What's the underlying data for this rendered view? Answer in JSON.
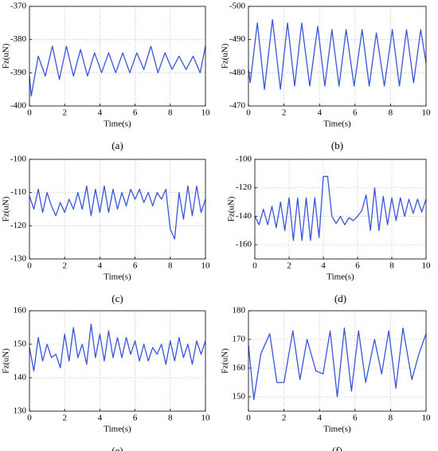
{
  "chart_data": [
    {
      "type": "line",
      "caption": "(a)",
      "xlabel": "Time(s)",
      "ylabel": "Fz(uN)",
      "x": [
        0,
        0.1,
        0.5,
        0.9,
        1.3,
        1.7,
        2.1,
        2.5,
        2.9,
        3.3,
        3.7,
        4.1,
        4.5,
        4.9,
        5.3,
        5.7,
        6.1,
        6.5,
        6.9,
        7.3,
        7.7,
        8.1,
        8.5,
        8.9,
        9.3,
        9.7,
        10
      ],
      "values": [
        -391,
        -397,
        -385,
        -391,
        -382,
        -392,
        -382,
        -391,
        -383,
        -391,
        -384,
        -390,
        -384,
        -390,
        -384,
        -390,
        -384,
        -389,
        -382,
        -390,
        -384,
        -389,
        -385,
        -389,
        -385,
        -390,
        -382
      ],
      "color": "#3a54d8",
      "xlim": [
        0,
        10
      ],
      "xticks": [
        0,
        2,
        4,
        6,
        8,
        10
      ],
      "ylim": [
        -400,
        -370
      ],
      "yticks": [
        -400,
        -390,
        -380,
        -370
      ],
      "grid": true
    },
    {
      "type": "line",
      "caption": "(b)",
      "xlabel": "Time(s)",
      "ylabel": "Fz(uN)",
      "x": [
        0,
        0.1,
        0.5,
        0.9,
        1.35,
        1.8,
        2.2,
        2.6,
        3.0,
        3.45,
        3.9,
        4.3,
        4.7,
        5.1,
        5.5,
        5.95,
        6.4,
        6.8,
        7.2,
        7.65,
        8.1,
        8.5,
        8.9,
        9.3,
        9.7,
        10
      ],
      "values": [
        -481,
        -477,
        -495,
        -475,
        -496,
        -475,
        -495,
        -476,
        -495,
        -476,
        -494,
        -476,
        -493,
        -476,
        -493,
        -476,
        -493,
        -476,
        -492,
        -476,
        -493,
        -476,
        -493,
        -477,
        -493,
        -483
      ],
      "color": "#3a54d8",
      "xlim": [
        0,
        10
      ],
      "xticks": [
        0,
        2,
        4,
        6,
        8,
        10
      ],
      "ylim": [
        -470,
        -500
      ],
      "yticks": [
        -470,
        -480,
        -490,
        -500
      ],
      "grid": true
    },
    {
      "type": "line",
      "caption": "(c)",
      "xlabel": "Time(s)",
      "ylabel": "Fz(uN)",
      "x": [
        0,
        0.25,
        0.5,
        0.75,
        1,
        1.25,
        1.5,
        1.75,
        2,
        2.25,
        2.5,
        2.75,
        3,
        3.25,
        3.5,
        3.75,
        4,
        4.25,
        4.5,
        4.75,
        5,
        5.25,
        5.5,
        5.75,
        6,
        6.25,
        6.5,
        6.75,
        7,
        7.25,
        7.5,
        7.75,
        8,
        8.25,
        8.5,
        8.75,
        9,
        9.25,
        9.5,
        9.75,
        10
      ],
      "values": [
        -111,
        -115,
        -109,
        -116,
        -110,
        -114,
        -117,
        -113,
        -116,
        -112,
        -115,
        -110,
        -115,
        -108,
        -117,
        -109,
        -116,
        -108,
        -116,
        -109,
        -115,
        -110,
        -114,
        -109,
        -112,
        -109,
        -113,
        -110,
        -114,
        -110,
        -112,
        -109,
        -121,
        -124,
        -110,
        -118,
        -108,
        -117,
        -108,
        -116,
        -112
      ],
      "color": "#3a54d8",
      "xlim": [
        0,
        10
      ],
      "xticks": [
        0,
        2,
        4,
        6,
        8,
        10
      ],
      "ylim": [
        -130,
        -100
      ],
      "yticks": [
        -130,
        -120,
        -110,
        -100
      ],
      "grid": true
    },
    {
      "type": "line",
      "caption": "(d)",
      "xlabel": "Time(s)",
      "ylabel": "Fz(uN)",
      "x": [
        0,
        0.25,
        0.5,
        0.75,
        1,
        1.25,
        1.5,
        1.75,
        2,
        2.25,
        2.5,
        2.75,
        3,
        3.25,
        3.5,
        3.75,
        4,
        4.25,
        4.5,
        4.75,
        5,
        5.25,
        5.5,
        5.75,
        6,
        6.25,
        6.5,
        6.75,
        7,
        7.25,
        7.5,
        7.75,
        8,
        8.25,
        8.5,
        8.75,
        9,
        9.25,
        9.5,
        9.75,
        10
      ],
      "values": [
        -140,
        -146,
        -135,
        -146,
        -133,
        -148,
        -130,
        -150,
        -127,
        -157,
        -127,
        -157,
        -127,
        -157,
        -127,
        -155,
        -112,
        -112,
        -140,
        -145,
        -140,
        -146,
        -141,
        -143,
        -140,
        -136,
        -125,
        -150,
        -120,
        -150,
        -126,
        -146,
        -127,
        -143,
        -127,
        -140,
        -128,
        -138,
        -128,
        -137,
        -128
      ],
      "color": "#3a54d8",
      "xlim": [
        0,
        10
      ],
      "xticks": [
        0,
        2,
        4,
        6,
        8,
        10
      ],
      "ylim": [
        -170,
        -100
      ],
      "yticks": [
        -160,
        -140,
        -120,
        -100
      ],
      "grid": true
    },
    {
      "type": "line",
      "caption": "(e)",
      "xlabel": "Time(s)",
      "ylabel": "Fz(uN)",
      "x": [
        0,
        0.25,
        0.5,
        0.75,
        1,
        1.25,
        1.5,
        1.75,
        2,
        2.25,
        2.5,
        2.75,
        3,
        3.25,
        3.5,
        3.75,
        4,
        4.25,
        4.5,
        4.75,
        5,
        5.25,
        5.5,
        5.75,
        6,
        6.25,
        6.5,
        6.75,
        7,
        7.25,
        7.5,
        7.75,
        8,
        8.25,
        8.5,
        8.75,
        9,
        9.25,
        9.5,
        9.75,
        10
      ],
      "values": [
        149,
        142,
        152,
        145,
        150,
        146,
        147,
        143,
        153,
        145,
        155,
        146,
        150,
        144,
        156,
        146,
        153,
        145,
        154,
        146,
        152,
        146,
        152,
        147,
        151,
        145,
        150,
        145,
        149,
        147,
        150,
        144,
        151,
        145,
        152,
        146,
        150,
        144,
        151,
        147,
        151
      ],
      "color": "#3a54d8",
      "xlim": [
        0,
        10
      ],
      "xticks": [
        0,
        2,
        4,
        6,
        8,
        10
      ],
      "ylim": [
        130,
        160
      ],
      "yticks": [
        130,
        140,
        150,
        160
      ],
      "grid": true
    },
    {
      "type": "line",
      "caption": "(f)",
      "xlabel": "Time(s)",
      "ylabel": "Fz(uN)",
      "x": [
        0,
        0.3,
        0.7,
        1.2,
        1.6,
        2.0,
        2.5,
        2.9,
        3.3,
        3.8,
        4.2,
        4.6,
        5.0,
        5.4,
        5.8,
        6.2,
        6.6,
        7.1,
        7.5,
        7.9,
        8.3,
        8.7,
        9.2,
        9.6,
        10
      ],
      "values": [
        168,
        149,
        165,
        172,
        155,
        155,
        173,
        156,
        170,
        159,
        158,
        173,
        150,
        174,
        152,
        173,
        155,
        170,
        158,
        173,
        153,
        174,
        156,
        165,
        172
      ],
      "color": "#3a54d8",
      "xlim": [
        0,
        10
      ],
      "xticks": [
        0,
        2,
        4,
        6,
        8,
        10
      ],
      "ylim": [
        145,
        180
      ],
      "yticks": [
        150,
        160,
        170,
        180
      ],
      "grid": true
    }
  ]
}
